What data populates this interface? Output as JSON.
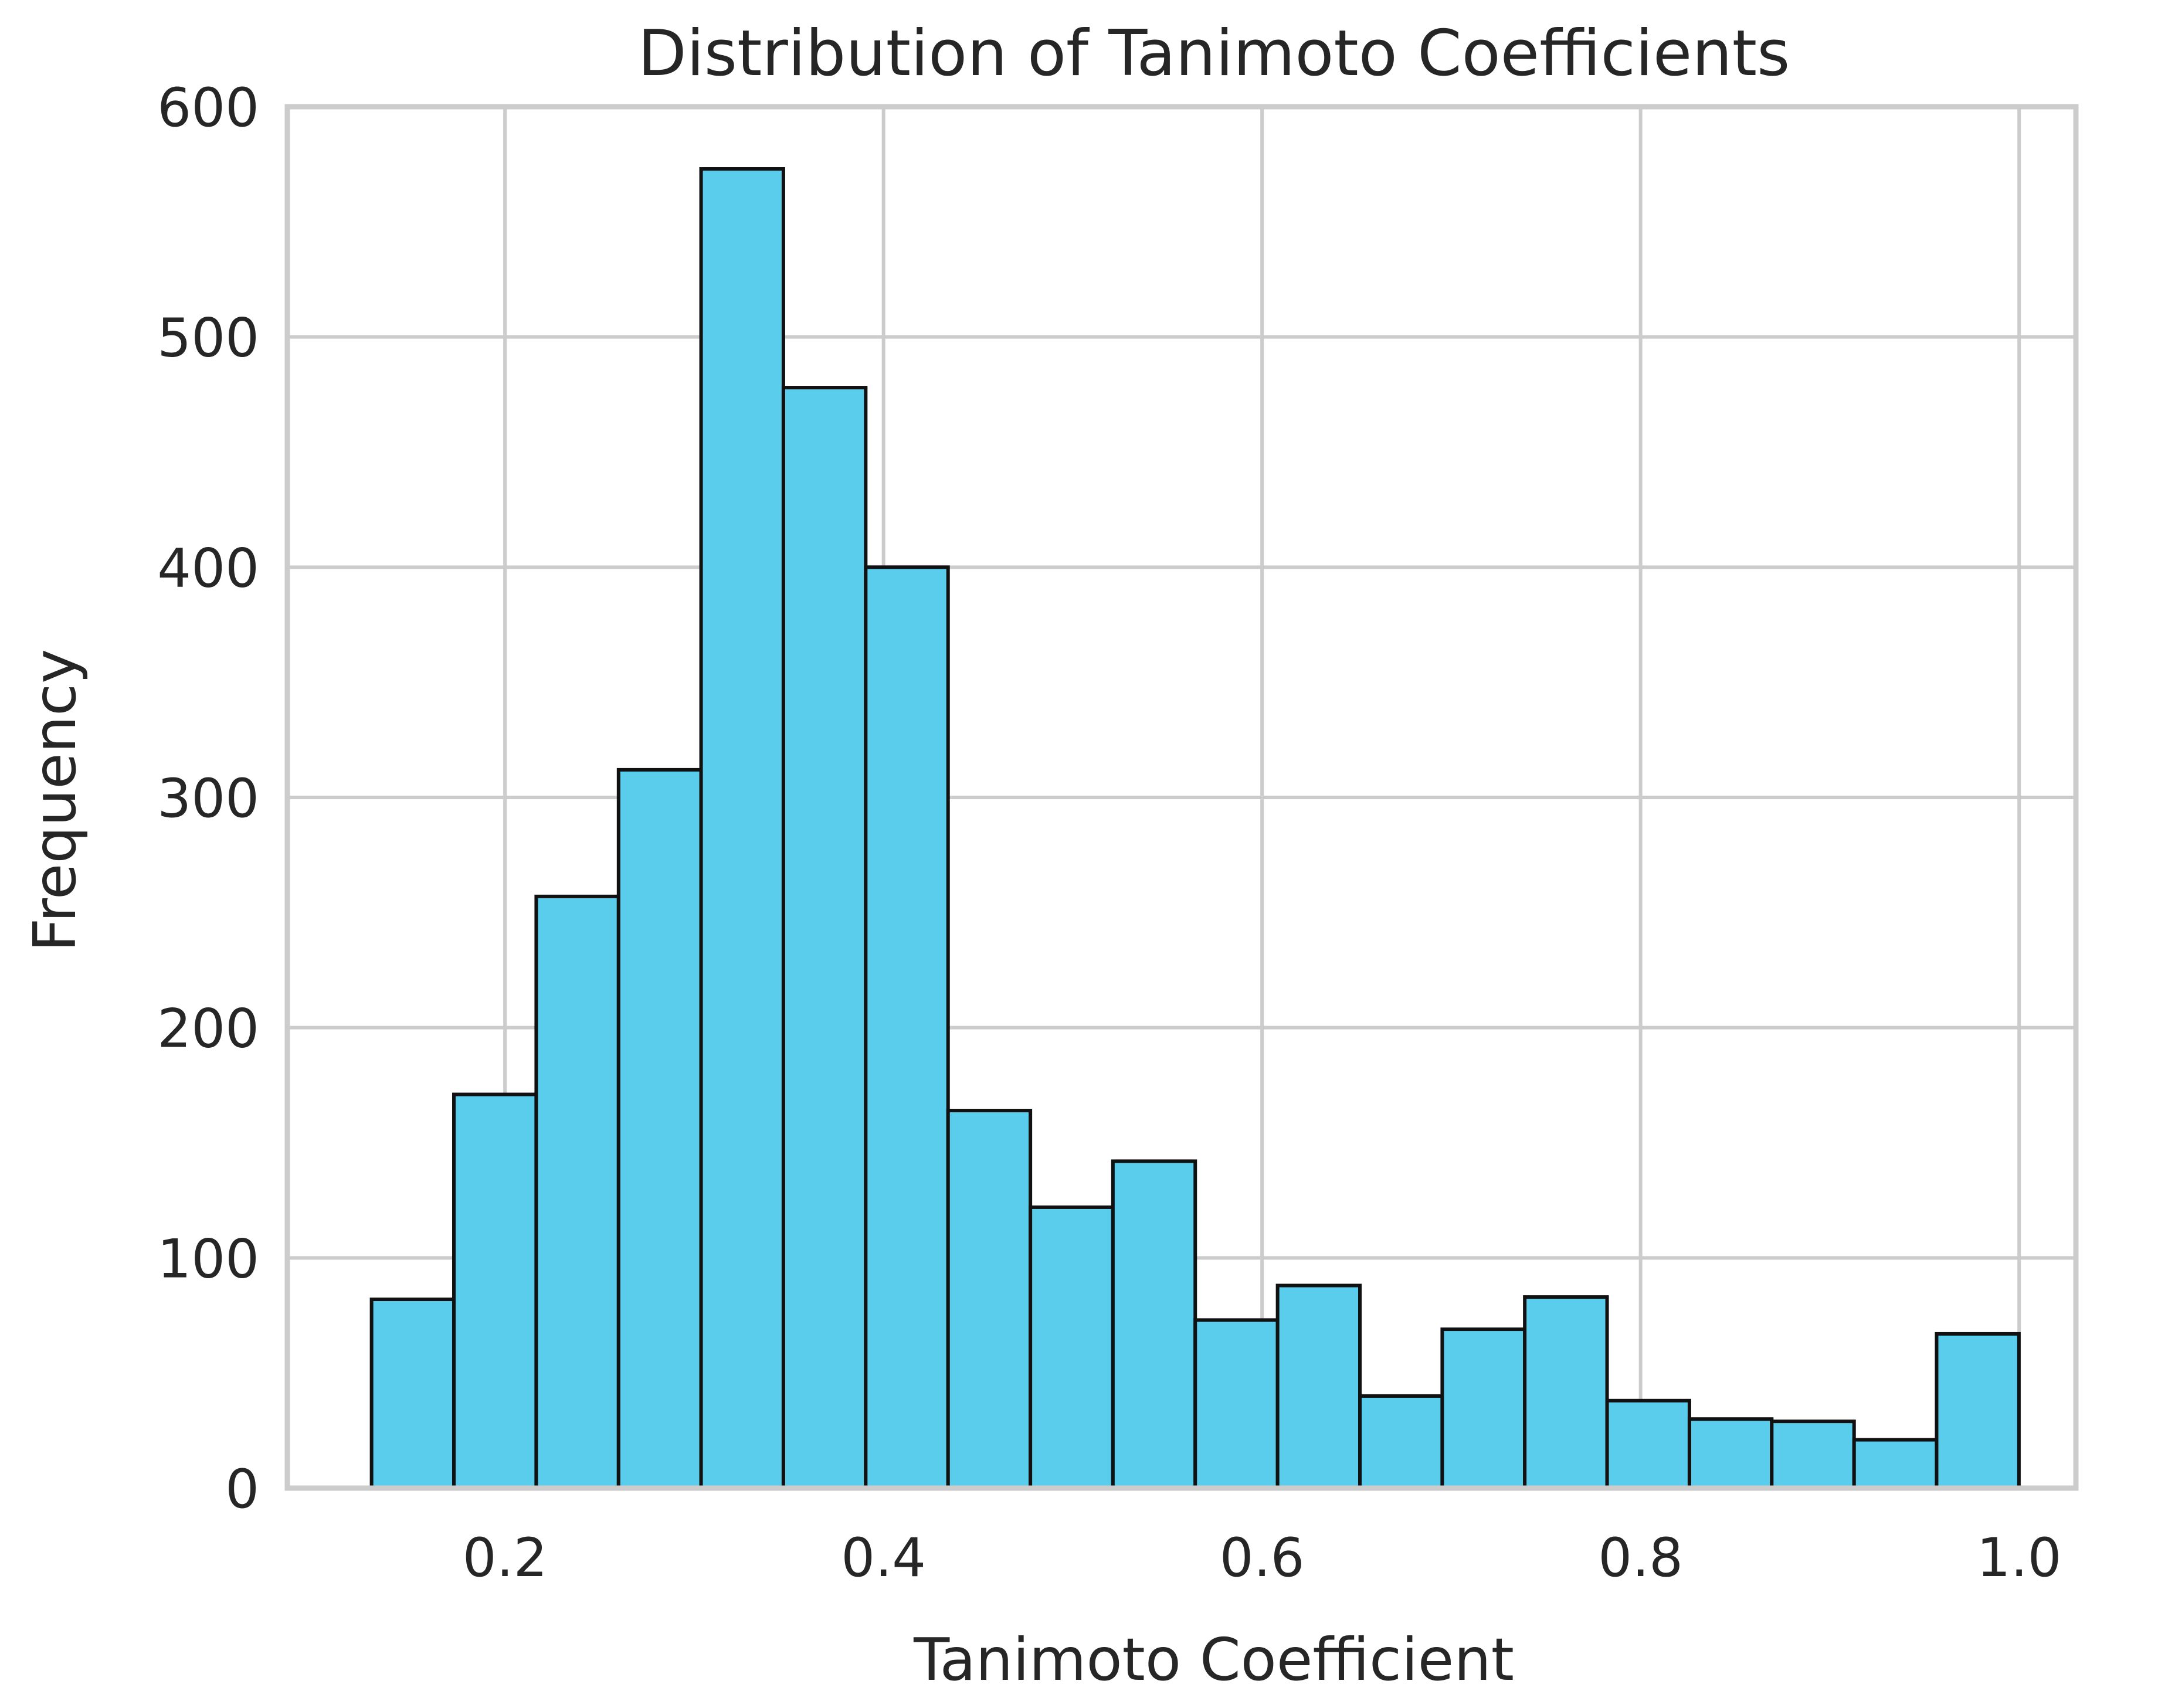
{
  "chart_data": {
    "type": "bar",
    "title": "Distribution of Tanimoto Coefficients",
    "xlabel": "Tanimoto Coefficient",
    "ylabel": "Frequency",
    "xlim": [
      0.085,
      1.03
    ],
    "ylim": [
      0,
      600
    ],
    "x_ticks": [
      0.2,
      0.4,
      0.6,
      0.8,
      1.0
    ],
    "x_tick_labels": [
      "0.2",
      "0.4",
      "0.6",
      "0.8",
      "1.0"
    ],
    "y_ticks": [
      0,
      100,
      200,
      300,
      400,
      500,
      600
    ],
    "y_tick_labels": [
      "0",
      "100",
      "200",
      "300",
      "400",
      "500",
      "600"
    ],
    "grid": true,
    "bar_color": "#5bcdec",
    "edge_color": "#111111",
    "bins": [
      {
        "start": 0.1295,
        "end": 0.173,
        "count": 82
      },
      {
        "start": 0.173,
        "end": 0.2165,
        "count": 171
      },
      {
        "start": 0.2165,
        "end": 0.26,
        "count": 257
      },
      {
        "start": 0.26,
        "end": 0.3036,
        "count": 312
      },
      {
        "start": 0.3036,
        "end": 0.3471,
        "count": 573
      },
      {
        "start": 0.3471,
        "end": 0.3906,
        "count": 478
      },
      {
        "start": 0.3906,
        "end": 0.4341,
        "count": 400
      },
      {
        "start": 0.4341,
        "end": 0.4776,
        "count": 164
      },
      {
        "start": 0.4776,
        "end": 0.5212,
        "count": 122
      },
      {
        "start": 0.5212,
        "end": 0.5647,
        "count": 142
      },
      {
        "start": 0.5647,
        "end": 0.6082,
        "count": 73
      },
      {
        "start": 0.6082,
        "end": 0.6517,
        "count": 88
      },
      {
        "start": 0.6517,
        "end": 0.6952,
        "count": 40
      },
      {
        "start": 0.6952,
        "end": 0.7388,
        "count": 69
      },
      {
        "start": 0.7388,
        "end": 0.7823,
        "count": 83
      },
      {
        "start": 0.7823,
        "end": 0.8258,
        "count": 38
      },
      {
        "start": 0.8258,
        "end": 0.8693,
        "count": 30
      },
      {
        "start": 0.8693,
        "end": 0.9128,
        "count": 29
      },
      {
        "start": 0.9128,
        "end": 0.9564,
        "count": 21
      },
      {
        "start": 0.9564,
        "end": 0.9999,
        "count": 67
      }
    ]
  }
}
